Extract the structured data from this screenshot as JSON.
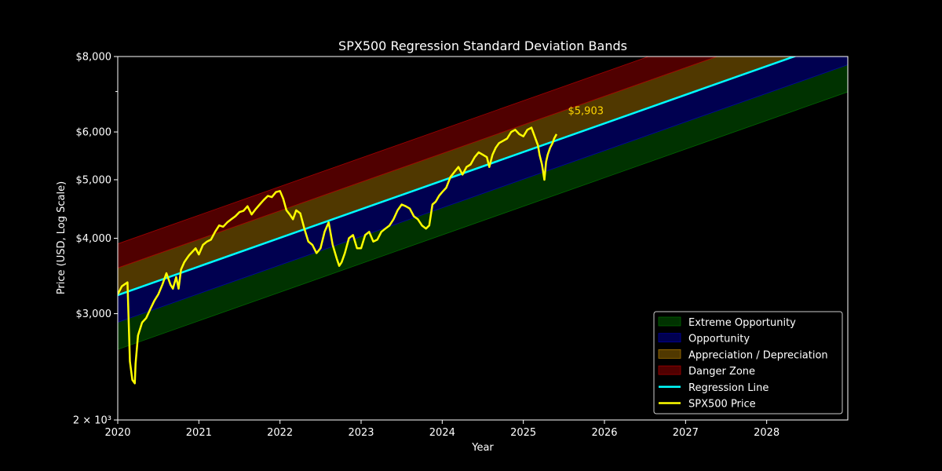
{
  "chart_data": {
    "type": "line",
    "title": "SPX500 Regression Standard Deviation Bands",
    "xlabel": "Year",
    "ylabel": "Price (USD, Log Scale)",
    "y_scale": "log",
    "xlim": [
      2020.0,
      2029.0
    ],
    "ylim": [
      2000,
      8000
    ],
    "x_ticks": [
      2020,
      2021,
      2022,
      2023,
      2024,
      2025,
      2026,
      2027,
      2028
    ],
    "x_tick_labels": [
      "2020",
      "2021",
      "2022",
      "2023",
      "2024",
      "2025",
      "2026",
      "2027",
      "2028"
    ],
    "y_ticks": [
      2000,
      3000,
      4000,
      5000,
      6000,
      8000
    ],
    "y_tick_labels": [
      "2 × 10³",
      "$3,000",
      "$4,000",
      "$5,000",
      "$6,000",
      "$8,000"
    ],
    "regression_line": {
      "name": "Regression Line",
      "start": [
        2020.0,
        3220
      ],
      "end": [
        2029.0,
        8600
      ],
      "color": "#00ffff"
    },
    "band_offsets_log10": [
      -0.09,
      -0.045,
      0.045,
      0.085
    ],
    "bands": [
      {
        "name": "Extreme Opportunity",
        "color": "#006400"
      },
      {
        "name": "Opportunity",
        "color": "#0000a0"
      },
      {
        "name": "Appreciation / Depreciation",
        "color": "#a07000"
      },
      {
        "name": "Danger Zone",
        "color": "#a00000"
      }
    ],
    "series": [
      {
        "name": "SPX500 Price",
        "color": "#ffff00",
        "x": [
          2020.0,
          2020.05,
          2020.12,
          2020.15,
          2020.18,
          2020.21,
          2020.22,
          2020.25,
          2020.3,
          2020.35,
          2020.4,
          2020.45,
          2020.5,
          2020.55,
          2020.6,
          2020.65,
          2020.68,
          2020.72,
          2020.75,
          2020.78,
          2020.82,
          2020.85,
          2020.88,
          2020.92,
          2020.96,
          2021.0,
          2021.05,
          2021.1,
          2021.15,
          2021.2,
          2021.25,
          2021.3,
          2021.35,
          2021.4,
          2021.45,
          2021.5,
          2021.55,
          2021.6,
          2021.65,
          2021.7,
          2021.75,
          2021.8,
          2021.85,
          2021.9,
          2021.95,
          2022.0,
          2022.04,
          2022.08,
          2022.12,
          2022.16,
          2022.2,
          2022.25,
          2022.3,
          2022.35,
          2022.4,
          2022.45,
          2022.5,
          2022.55,
          2022.6,
          2022.65,
          2022.7,
          2022.73,
          2022.76,
          2022.8,
          2022.85,
          2022.9,
          2022.95,
          2023.0,
          2023.05,
          2023.1,
          2023.15,
          2023.2,
          2023.25,
          2023.3,
          2023.35,
          2023.4,
          2023.45,
          2023.5,
          2023.55,
          2023.6,
          2023.65,
          2023.7,
          2023.75,
          2023.8,
          2023.84,
          2023.88,
          2023.92,
          2023.96,
          2024.0,
          2024.05,
          2024.1,
          2024.15,
          2024.2,
          2024.25,
          2024.3,
          2024.35,
          2024.4,
          2024.45,
          2024.5,
          2024.55,
          2024.58,
          2024.62,
          2024.66,
          2024.7,
          2024.75,
          2024.8,
          2024.85,
          2024.9,
          2024.95,
          2025.0,
          2025.05,
          2025.1,
          2025.14,
          2025.18,
          2025.2,
          2025.23,
          2025.26,
          2025.28,
          2025.3,
          2025.33,
          2025.36,
          2025.38,
          2025.41
        ],
        "y": [
          3230,
          3330,
          3380,
          2500,
          2330,
          2300,
          2480,
          2760,
          2900,
          2950,
          3050,
          3150,
          3230,
          3350,
          3500,
          3350,
          3300,
          3450,
          3300,
          3550,
          3650,
          3700,
          3750,
          3800,
          3850,
          3760,
          3900,
          3950,
          3980,
          4100,
          4200,
          4180,
          4250,
          4300,
          4350,
          4420,
          4440,
          4520,
          4380,
          4470,
          4550,
          4630,
          4700,
          4680,
          4770,
          4790,
          4650,
          4450,
          4380,
          4300,
          4450,
          4400,
          4150,
          3950,
          3900,
          3780,
          3850,
          4100,
          4250,
          3900,
          3700,
          3600,
          3650,
          3780,
          4000,
          4050,
          3850,
          3850,
          4050,
          4100,
          3950,
          3980,
          4100,
          4150,
          4200,
          4300,
          4450,
          4550,
          4520,
          4480,
          4350,
          4300,
          4200,
          4150,
          4200,
          4550,
          4600,
          4700,
          4770,
          4850,
          5050,
          5150,
          5250,
          5100,
          5250,
          5300,
          5450,
          5550,
          5500,
          5450,
          5250,
          5500,
          5650,
          5750,
          5800,
          5850,
          6000,
          6050,
          5950,
          5900,
          6050,
          6100,
          5900,
          5700,
          5500,
          5300,
          5000,
          5350,
          5500,
          5650,
          5750,
          5850,
          5950
        ]
      }
    ],
    "annotation": {
      "text": "$5,903",
      "x": 2025.55,
      "y": 6500,
      "color": "#ffd700"
    },
    "legend": {
      "placement": "lower-right",
      "entries": [
        "Extreme Opportunity",
        "Opportunity",
        "Appreciation / Depreciation",
        "Danger Zone",
        "Regression Line",
        "SPX500 Price"
      ]
    }
  }
}
